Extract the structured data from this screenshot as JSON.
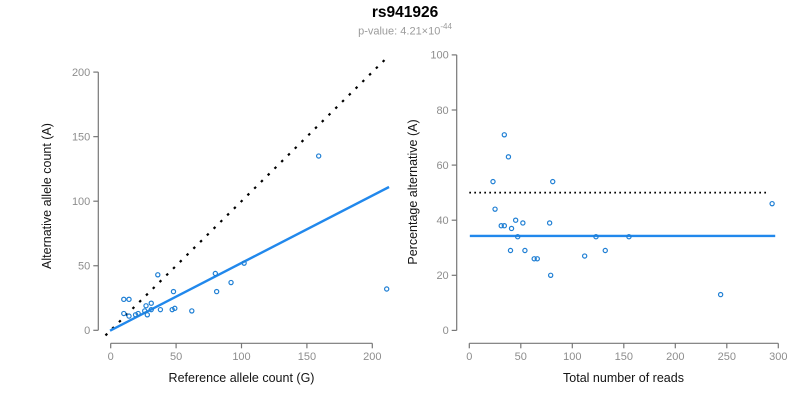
{
  "title": "rs941926",
  "subtitle": {
    "base": "p-value: 4.21×10",
    "exponent": "-44",
    "full": "p-value: 4.21×10^-44"
  },
  "colors": {
    "background": "#ffffff",
    "line_blue": "#2188ec",
    "point_blue": "#1f7fd4",
    "dotted_black": "#000000",
    "axis_line": "#777777",
    "tick_label": "#8d8d8d",
    "axis_title": "#141414",
    "title_black": "#000000",
    "subtitle_gray": "#9b9b9b"
  },
  "chart_data": [
    {
      "id": "left",
      "type": "scatter",
      "xlabel": "Reference allele count (G)",
      "ylabel": "Alternative allele count (A)",
      "xticks": [
        0,
        50,
        100,
        150,
        200
      ],
      "yticks": [
        0,
        50,
        100,
        150,
        200
      ],
      "xlim": [
        0,
        211
      ],
      "ylim": [
        0,
        211
      ],
      "grid": false,
      "legend": false,
      "points": [
        [
          10,
          24
        ],
        [
          14,
          24
        ],
        [
          10,
          13
        ],
        [
          14,
          11
        ],
        [
          19,
          12
        ],
        [
          21,
          13
        ],
        [
          27,
          19
        ],
        [
          31,
          21
        ],
        [
          26,
          15
        ],
        [
          31,
          16
        ],
        [
          28,
          12
        ],
        [
          38,
          16
        ],
        [
          36,
          43
        ],
        [
          47,
          16
        ],
        [
          49,
          17
        ],
        [
          48,
          30
        ],
        [
          62,
          15
        ],
        [
          80,
          44
        ],
        [
          81,
          30
        ],
        [
          92,
          37
        ],
        [
          102,
          52
        ],
        [
          159,
          135
        ],
        [
          211,
          32
        ]
      ],
      "lines": [
        {
          "name": "identity-line",
          "style": "dotted",
          "color": "#000000",
          "width": 2.2,
          "dash": "2.5,7",
          "x1": -4,
          "y1": -4,
          "x2": 211.5,
          "y2": 211.5
        },
        {
          "name": "regression-line",
          "style": "solid",
          "color": "#2188ec",
          "width": 2.4,
          "dash": "",
          "x1": -0.5,
          "y1": -0.3,
          "x2": 212.8,
          "y2": 111
        }
      ]
    },
    {
      "id": "right",
      "type": "scatter",
      "xlabel": "Total number of reads",
      "ylabel": "Percentage alternative (A)",
      "xticks": [
        0,
        50,
        100,
        150,
        200,
        250,
        300
      ],
      "yticks": [
        0,
        20,
        40,
        60,
        80,
        100
      ],
      "xlim": [
        0,
        300
      ],
      "ylim": [
        0,
        100
      ],
      "grid": false,
      "legend": false,
      "points": [
        [
          34,
          71
        ],
        [
          38,
          63
        ],
        [
          23,
          54
        ],
        [
          25,
          44
        ],
        [
          31,
          38
        ],
        [
          34,
          38
        ],
        [
          45,
          40
        ],
        [
          52,
          39
        ],
        [
          41,
          37
        ],
        [
          47,
          34
        ],
        [
          40,
          29
        ],
        [
          54,
          29
        ],
        [
          63,
          26
        ],
        [
          66,
          26
        ],
        [
          78,
          39
        ],
        [
          81,
          54
        ],
        [
          79,
          20
        ],
        [
          112,
          27
        ],
        [
          123,
          34
        ],
        [
          132,
          29
        ],
        [
          155,
          34
        ],
        [
          244,
          13
        ],
        [
          294,
          46
        ]
      ],
      "lines": [
        {
          "name": "fifty-percent-line",
          "style": "dotted",
          "color": "#000000",
          "width": 1.8,
          "dash": "1.7,3.3",
          "x1": 0,
          "y1": 50,
          "x2": 289,
          "y2": 50
        },
        {
          "name": "mean-percentage-line",
          "style": "solid",
          "color": "#2188ec",
          "width": 2.4,
          "dash": "",
          "x1": 0.5,
          "y1": 34.3,
          "x2": 297,
          "y2": 34.3
        }
      ]
    }
  ]
}
